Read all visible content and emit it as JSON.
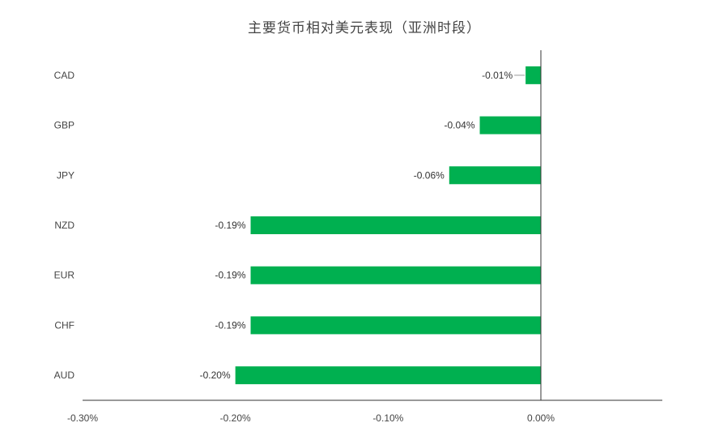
{
  "chart_data": {
    "type": "bar",
    "orientation": "horizontal",
    "title": "主要货币相对美元表现（亚洲时段）",
    "categories": [
      "CAD",
      "GBP",
      "JPY",
      "NZD",
      "EUR",
      "CHF",
      "AUD"
    ],
    "values": [
      -0.01,
      -0.04,
      -0.06,
      -0.19,
      -0.19,
      -0.19,
      -0.2
    ],
    "data_labels": [
      "-0.01%",
      "-0.04%",
      "-0.06%",
      "-0.19%",
      "-0.19%",
      "-0.19%",
      "-0.20%"
    ],
    "x_ticks": [
      -0.3,
      -0.2,
      -0.1,
      0.0
    ],
    "x_tick_labels": [
      "-0.30%",
      "-0.20%",
      "-0.10%",
      "0.00%"
    ],
    "xlim": [
      -0.3,
      0.08
    ],
    "xlabel": "",
    "ylabel": "",
    "grid": false,
    "legend": "none",
    "bar_color": "#00b050",
    "axis_color": "#333333"
  }
}
